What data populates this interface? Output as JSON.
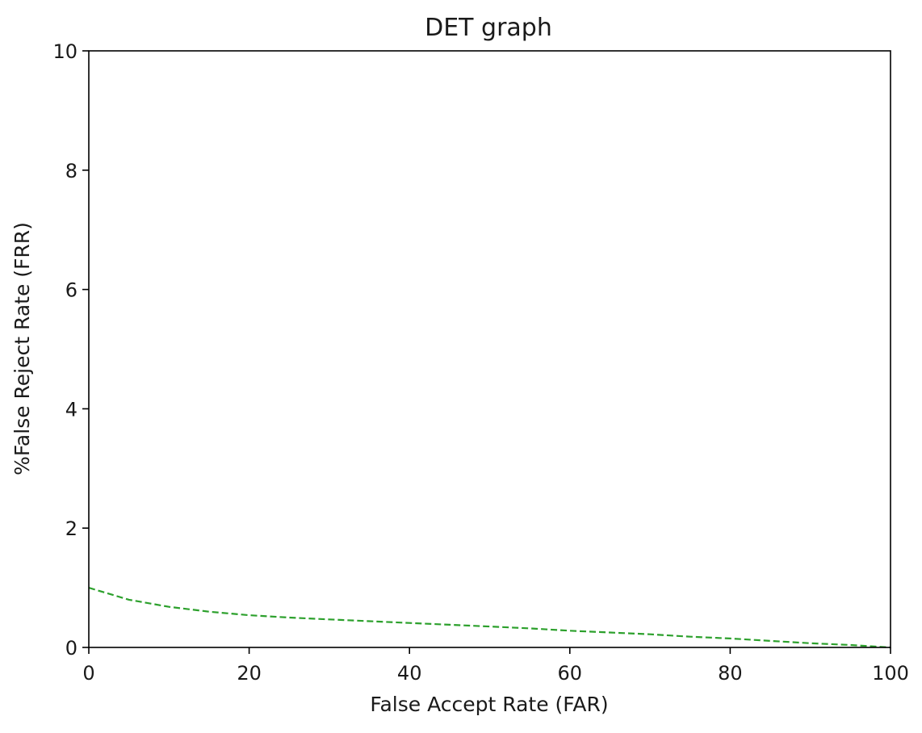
{
  "chart_data": {
    "type": "line",
    "title": "DET graph",
    "xlabel": "False Accept Rate (FAR)",
    "ylabel": "%False Reject Rate (FRR)",
    "xlim": [
      0,
      100
    ],
    "ylim": [
      0,
      10
    ],
    "xticks": [
      "0",
      "20",
      "40",
      "60",
      "80",
      "100"
    ],
    "yticks": [
      "0",
      "2",
      "4",
      "6",
      "8",
      "10"
    ],
    "grid": false,
    "legend": "none",
    "series": [
      {
        "color": "#2ca02c",
        "line_style": "dashed",
        "x": [
          0,
          5,
          10,
          15,
          20,
          25,
          30,
          35,
          40,
          45,
          50,
          55,
          60,
          65,
          70,
          75,
          80,
          85,
          90,
          95,
          100
        ],
        "y": [
          1.0,
          0.8,
          0.68,
          0.6,
          0.54,
          0.5,
          0.47,
          0.44,
          0.41,
          0.38,
          0.35,
          0.32,
          0.28,
          0.25,
          0.22,
          0.18,
          0.15,
          0.11,
          0.07,
          0.04,
          0.0
        ]
      }
    ]
  }
}
